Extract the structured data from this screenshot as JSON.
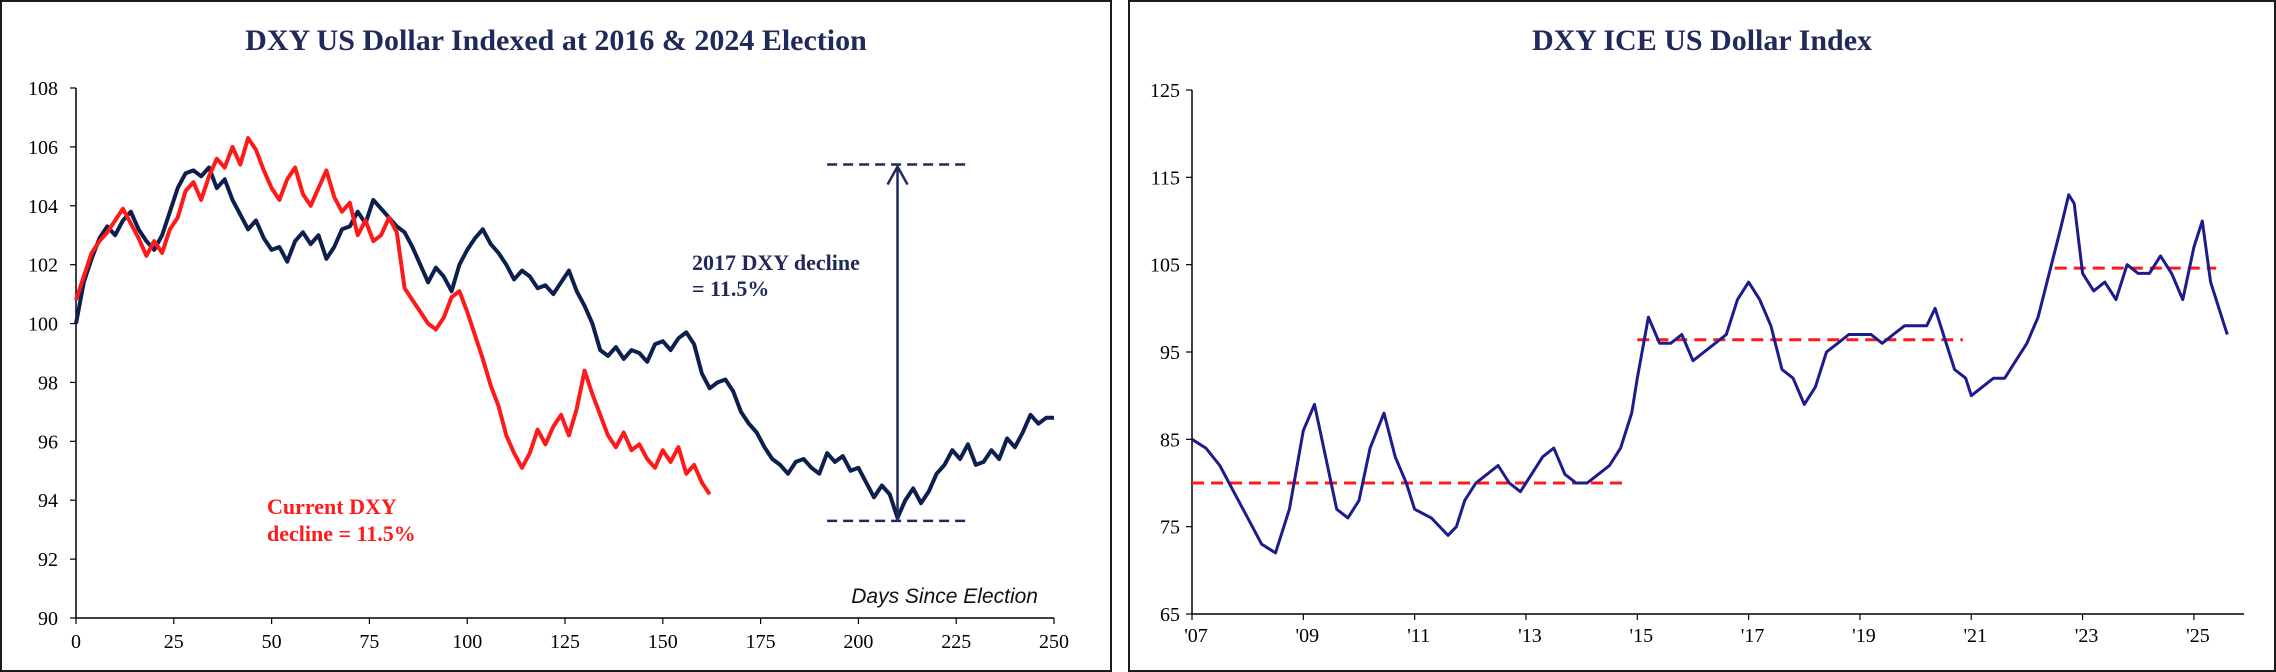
{
  "chart_data": [
    {
      "type": "line",
      "title": "DXY US Dollar Indexed at 2016 & 2024 Election",
      "xlabel": "Days Since Election",
      "ylabel": "",
      "xlim": [
        0,
        250
      ],
      "ylim": [
        90,
        108
      ],
      "x_ticks": [
        "0",
        "25",
        "50",
        "75",
        "100",
        "125",
        "150",
        "175",
        "200",
        "225",
        "250"
      ],
      "y_ticks": [
        "90",
        "92",
        "94",
        "96",
        "98",
        "100",
        "102",
        "104",
        "106",
        "108"
      ],
      "grid": false,
      "colors": {
        "series_2016": "#0d1f4f",
        "series_2024": "#ff1a1a",
        "annotation": "#1f2a5a"
      },
      "series": [
        {
          "key": "2016",
          "x": [
            0,
            2,
            4,
            6,
            8,
            10,
            12,
            14,
            16,
            18,
            20,
            22,
            24,
            26,
            28,
            30,
            32,
            34,
            36,
            38,
            40,
            42,
            44,
            46,
            48,
            50,
            52,
            54,
            56,
            58,
            60,
            62,
            64,
            66,
            68,
            70,
            72,
            74,
            76,
            78,
            80,
            82,
            84,
            86,
            88,
            90,
            92,
            94,
            96,
            98,
            100,
            102,
            104,
            106,
            108,
            110,
            112,
            114,
            116,
            118,
            120,
            122,
            124,
            126,
            128,
            130,
            132,
            134,
            136,
            138,
            140,
            142,
            144,
            146,
            148,
            150,
            152,
            154,
            156,
            158,
            160,
            162,
            164,
            166,
            168,
            170,
            172,
            174,
            176,
            178,
            180,
            182,
            184,
            186,
            188,
            190,
            192,
            194,
            196,
            198,
            200,
            202,
            204,
            206,
            208,
            210,
            212,
            214,
            216,
            218,
            220,
            222,
            224,
            226,
            228,
            230,
            232,
            234,
            236,
            238,
            240,
            242,
            244,
            246,
            248,
            250
          ],
          "values": [
            100.0,
            101.4,
            102.2,
            102.9,
            103.3,
            103.0,
            103.5,
            103.8,
            103.2,
            102.8,
            102.5,
            103.0,
            103.8,
            104.6,
            105.1,
            105.2,
            105.0,
            105.3,
            104.6,
            104.9,
            104.2,
            103.7,
            103.2,
            103.5,
            102.9,
            102.5,
            102.6,
            102.1,
            102.8,
            103.1,
            102.7,
            103.0,
            102.2,
            102.6,
            103.2,
            103.3,
            103.8,
            103.4,
            104.2,
            103.9,
            103.6,
            103.3,
            103.1,
            102.6,
            102.0,
            101.4,
            101.9,
            101.6,
            101.1,
            102.0,
            102.5,
            102.9,
            103.2,
            102.7,
            102.4,
            102.0,
            101.5,
            101.8,
            101.6,
            101.2,
            101.3,
            101.0,
            101.4,
            101.8,
            101.1,
            100.6,
            100.0,
            99.1,
            98.9,
            99.2,
            98.8,
            99.1,
            99.0,
            98.7,
            99.3,
            99.4,
            99.1,
            99.5,
            99.7,
            99.3,
            98.3,
            97.8,
            98.0,
            98.1,
            97.7,
            97.0,
            96.6,
            96.3,
            95.8,
            95.4,
            95.2,
            94.9,
            95.3,
            95.4,
            95.1,
            94.9,
            95.6,
            95.3,
            95.5,
            95.0,
            95.1,
            94.6,
            94.1,
            94.5,
            94.2,
            93.4,
            94.0,
            94.4,
            93.9,
            94.3,
            94.9,
            95.2,
            95.7,
            95.4,
            95.9,
            95.2,
            95.3,
            95.7,
            95.4,
            96.1,
            95.8,
            96.3,
            96.9,
            96.6,
            96.8,
            96.8
          ]
        },
        {
          "key": "2024",
          "x": [
            0,
            2,
            4,
            6,
            8,
            10,
            12,
            14,
            16,
            18,
            20,
            22,
            24,
            26,
            28,
            30,
            32,
            34,
            36,
            38,
            40,
            42,
            44,
            46,
            48,
            50,
            52,
            54,
            56,
            58,
            60,
            62,
            64,
            66,
            68,
            70,
            72,
            74,
            76,
            78,
            80,
            82,
            84,
            86,
            88,
            90,
            92,
            94,
            96,
            98,
            100,
            102,
            104,
            106,
            108,
            110,
            112,
            114,
            116,
            118,
            120,
            122,
            124,
            126,
            128,
            130,
            132,
            134,
            136,
            138,
            140,
            142,
            144,
            146,
            148,
            150,
            152,
            154,
            156,
            158,
            160,
            162
          ],
          "values": [
            100.8,
            101.6,
            102.4,
            102.8,
            103.1,
            103.5,
            103.9,
            103.4,
            102.9,
            102.3,
            102.8,
            102.4,
            103.2,
            103.6,
            104.5,
            104.8,
            104.2,
            105.0,
            105.6,
            105.3,
            106.0,
            105.4,
            106.3,
            105.9,
            105.2,
            104.6,
            104.2,
            104.9,
            105.3,
            104.4,
            104.0,
            104.6,
            105.2,
            104.3,
            103.8,
            104.1,
            103.0,
            103.5,
            102.8,
            103.0,
            103.6,
            103.1,
            101.2,
            100.8,
            100.4,
            100.0,
            99.8,
            100.2,
            100.9,
            101.1,
            100.4,
            99.6,
            98.8,
            97.9,
            97.2,
            96.2,
            95.6,
            95.1,
            95.6,
            96.4,
            95.9,
            96.5,
            96.9,
            96.2,
            97.1,
            98.4,
            97.6,
            96.9,
            96.2,
            95.8,
            96.3,
            95.7,
            95.9,
            95.4,
            95.1,
            95.7,
            95.3,
            95.8,
            94.9,
            95.2,
            94.6,
            94.2
          ]
        }
      ],
      "annotations": {
        "blue_line1": "2017 DXY decline",
        "blue_line2": "= 11.5%",
        "red_line1": "Current DXY",
        "red_line2": "decline = 11.5%"
      },
      "reference_marks": {
        "top": 105.4,
        "bottom": 93.3,
        "x": 210,
        "from": 192,
        "to": 228
      }
    },
    {
      "type": "line",
      "title": "DXY ICE US Dollar Index",
      "xlabel": "",
      "ylabel": "",
      "xlim": [
        2007,
        2025.9
      ],
      "ylim": [
        65,
        125
      ],
      "x_ticks": [
        "'07",
        "'09",
        "'11",
        "'13",
        "'15",
        "'17",
        "'19",
        "'21",
        "'23",
        "'25"
      ],
      "y_ticks": [
        "65",
        "75",
        "85",
        "95",
        "105",
        "115",
        "125"
      ],
      "grid": false,
      "colors": {
        "series": "#1c1c8c",
        "averages": "#ff1a1a"
      },
      "series": [
        {
          "key": "dxy",
          "x": [
            2007.0,
            2007.25,
            2007.5,
            2007.75,
            2008.0,
            2008.25,
            2008.5,
            2008.75,
            2009.0,
            2009.2,
            2009.4,
            2009.6,
            2009.8,
            2010.0,
            2010.2,
            2010.45,
            2010.65,
            2010.85,
            2011.0,
            2011.3,
            2011.6,
            2011.75,
            2011.9,
            2012.1,
            2012.3,
            2012.5,
            2012.7,
            2012.9,
            2013.1,
            2013.3,
            2013.5,
            2013.7,
            2013.9,
            2014.1,
            2014.3,
            2014.5,
            2014.7,
            2014.9,
            2015.0,
            2015.2,
            2015.4,
            2015.6,
            2015.8,
            2016.0,
            2016.2,
            2016.4,
            2016.6,
            2016.8,
            2017.0,
            2017.2,
            2017.4,
            2017.6,
            2017.8,
            2018.0,
            2018.2,
            2018.4,
            2018.6,
            2018.8,
            2019.0,
            2019.2,
            2019.4,
            2019.6,
            2019.8,
            2020.0,
            2020.2,
            2020.35,
            2020.5,
            2020.7,
            2020.9,
            2021.0,
            2021.2,
            2021.4,
            2021.6,
            2021.8,
            2022.0,
            2022.2,
            2022.4,
            2022.6,
            2022.75,
            2022.85,
            2023.0,
            2023.2,
            2023.4,
            2023.6,
            2023.8,
            2024.0,
            2024.2,
            2024.4,
            2024.6,
            2024.8,
            2025.0,
            2025.15,
            2025.3,
            2025.5,
            2025.6
          ],
          "values": [
            85,
            84,
            82,
            79,
            76,
            73,
            72,
            77,
            86,
            89,
            83,
            77,
            76,
            78,
            84,
            88,
            83,
            80,
            77,
            76,
            74,
            75,
            78,
            80,
            81,
            82,
            80,
            79,
            81,
            83,
            84,
            81,
            80,
            80,
            81,
            82,
            84,
            88,
            92,
            99,
            96,
            96,
            97,
            94,
            95,
            96,
            97,
            101,
            103,
            101,
            98,
            93,
            92,
            89,
            91,
            95,
            96,
            97,
            97,
            97,
            96,
            97,
            98,
            98,
            98,
            100,
            97,
            93,
            92,
            90,
            91,
            92,
            92,
            94,
            96,
            99,
            104,
            109,
            113,
            112,
            104,
            102,
            103,
            101,
            105,
            104,
            104,
            106,
            104,
            101,
            107,
            110,
            103,
            99,
            97
          ]
        }
      ],
      "averages": [
        {
          "value": 80,
          "from": 2007.0,
          "to": 2014.85
        },
        {
          "value": 96.4,
          "from": 2015.0,
          "to": 2020.85
        },
        {
          "value": 104.6,
          "from": 2022.5,
          "to": 2025.4
        }
      ]
    }
  ]
}
